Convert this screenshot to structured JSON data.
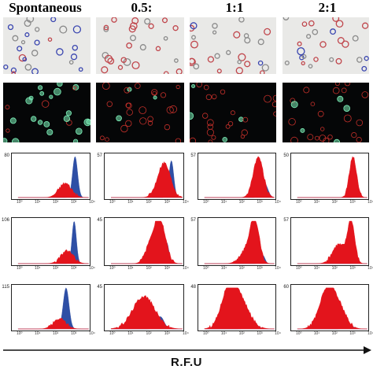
{
  "columns": [
    "Spontaneous",
    "0.5:",
    "1:1",
    "2:1"
  ],
  "colors": {
    "red_population": "#e3141c",
    "blue_population": "#2e4fa5",
    "cell_blue": "#3a46b0",
    "cell_red": "#c0464c",
    "fluor_green": "#7cf0b8",
    "fluor_red": "#c4302a"
  },
  "image_rows": [
    {
      "type": "brightfield-cells",
      "color_note": "blue and red stained cells on grey background"
    },
    {
      "type": "fluorescence-cells",
      "color_note": "green and red fluorescent cells on black background"
    }
  ],
  "histogram_rows": [
    {
      "ymax_labels": [
        "80",
        "57",
        "57",
        "50"
      ]
    },
    {
      "ymax_labels": [
        "106",
        "45",
        "57",
        "57"
      ]
    },
    {
      "ymax_labels": [
        "115",
        "45",
        "48",
        "60"
      ]
    }
  ],
  "x_tick_labels": [
    "10⁰",
    "10¹",
    "10²",
    "10³",
    "10⁴"
  ],
  "x_axis_label": "R.F.U"
}
